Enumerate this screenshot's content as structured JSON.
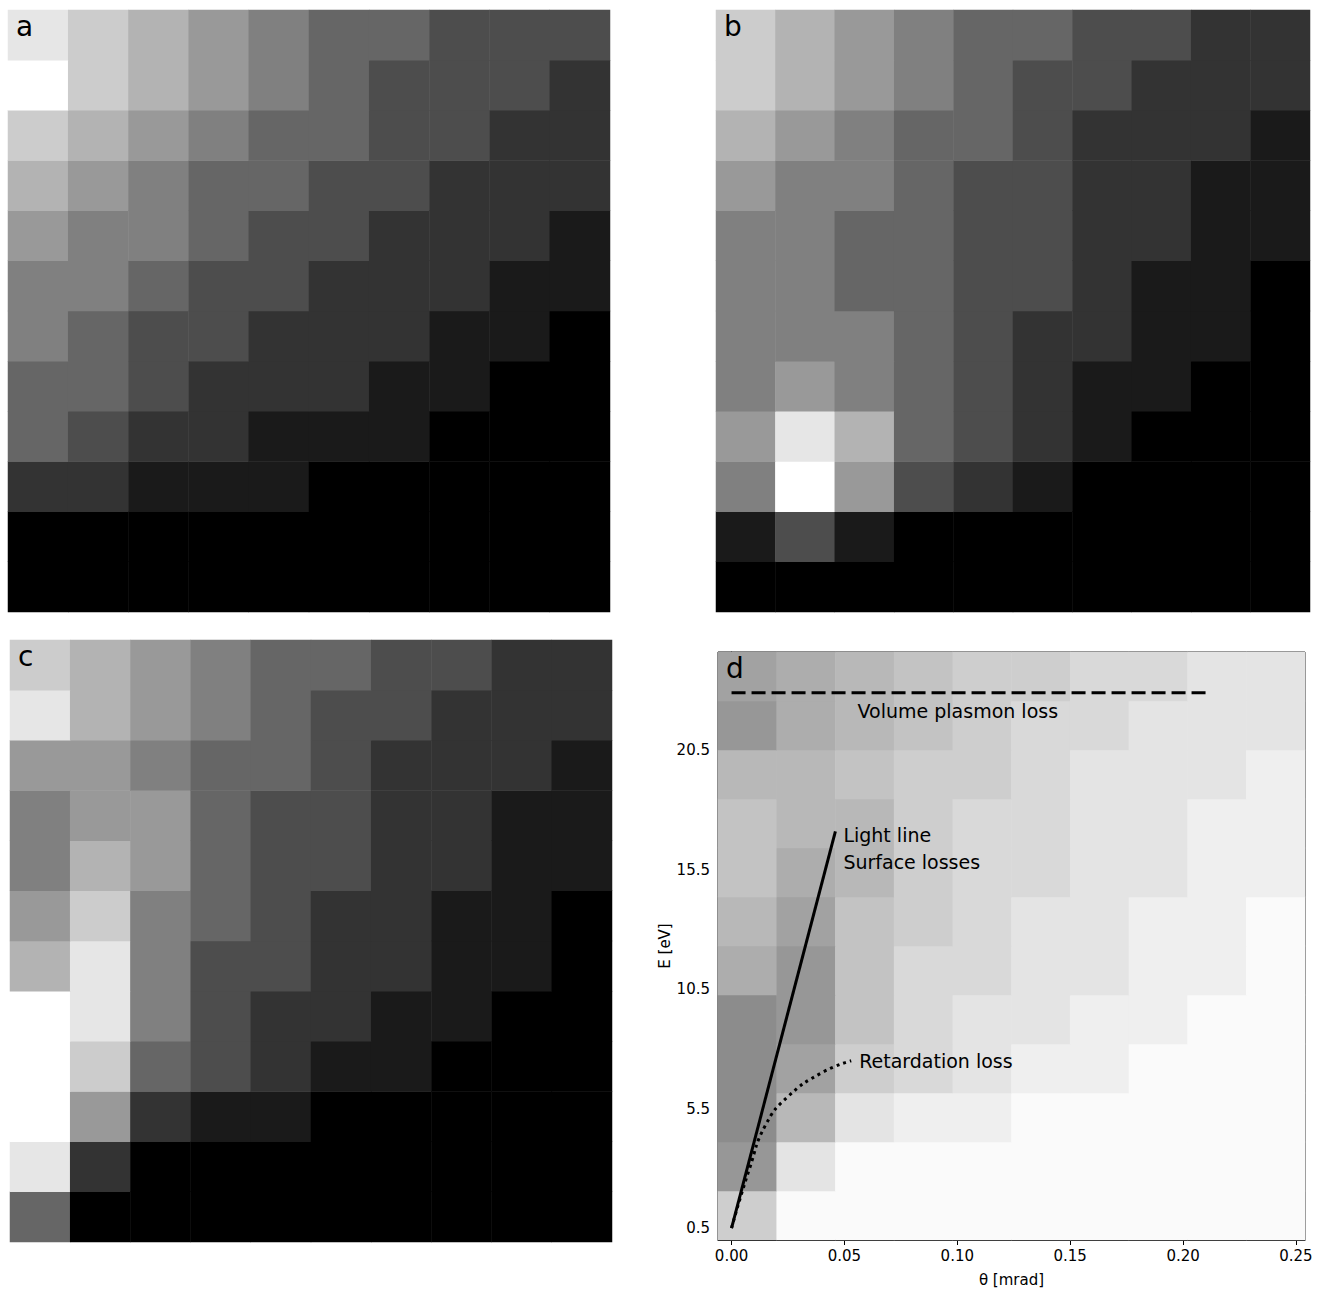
{
  "chart_data": [
    {
      "type": "heatmap",
      "title": "a",
      "tick_labels": false,
      "color": [
        "#000000",
        "#ffffff"
      ],
      "value_range": [
        0,
        10
      ],
      "theta": [
        0.007,
        0.033,
        0.059,
        0.085,
        0.111,
        0.137,
        0.163,
        0.189,
        0.215,
        0.241
      ],
      "energy": [
        1.025,
        3.075,
        5.125,
        7.175,
        9.225,
        11.275,
        13.325,
        15.375,
        17.425,
        19.475,
        21.525,
        23.575
      ],
      "cells": [
        [
          0,
          0,
          0,
          0,
          0,
          0,
          0,
          0,
          0,
          0
        ],
        [
          0,
          0,
          0,
          0,
          0,
          0,
          0,
          0,
          0,
          0
        ],
        [
          2,
          2,
          1,
          1,
          1,
          0,
          0,
          0,
          0,
          0
        ],
        [
          4,
          3,
          2,
          2,
          1,
          1,
          1,
          0,
          0,
          0
        ],
        [
          4,
          4,
          3,
          2,
          2,
          2,
          1,
          1,
          0,
          0
        ],
        [
          5,
          4,
          3,
          3,
          2,
          2,
          2,
          1,
          1,
          0
        ],
        [
          5,
          5,
          4,
          3,
          3,
          2,
          2,
          2,
          1,
          1
        ],
        [
          6,
          5,
          5,
          4,
          3,
          3,
          2,
          2,
          2,
          1
        ],
        [
          7,
          6,
          5,
          4,
          4,
          3,
          3,
          2,
          2,
          2
        ],
        [
          8,
          7,
          6,
          5,
          4,
          4,
          3,
          3,
          2,
          2
        ],
        [
          10,
          8,
          7,
          6,
          5,
          4,
          3,
          3,
          3,
          2
        ],
        [
          9,
          8,
          7,
          6,
          5,
          4,
          4,
          3,
          3,
          3
        ]
      ]
    },
    {
      "type": "heatmap",
      "title": "b",
      "tick_labels": false,
      "color": [
        "#000000",
        "#ffffff"
      ],
      "value_range": [
        0,
        10
      ],
      "theta": [
        0.007,
        0.033,
        0.059,
        0.085,
        0.111,
        0.137,
        0.163,
        0.189,
        0.215,
        0.241
      ],
      "energy": [
        1.025,
        3.075,
        5.125,
        7.175,
        9.225,
        11.275,
        13.325,
        15.375,
        17.425,
        19.475,
        21.525,
        23.575
      ],
      "cells": [
        [
          0,
          0,
          0,
          0,
          0,
          0,
          0,
          0,
          0,
          0
        ],
        [
          1,
          3,
          1,
          0,
          0,
          0,
          0,
          0,
          0,
          0
        ],
        [
          5,
          10,
          6,
          3,
          2,
          1,
          0,
          0,
          0,
          0
        ],
        [
          6,
          9,
          7,
          4,
          3,
          2,
          1,
          0,
          0,
          0
        ],
        [
          5,
          6,
          5,
          4,
          3,
          2,
          1,
          1,
          0,
          0
        ],
        [
          5,
          5,
          5,
          4,
          3,
          2,
          2,
          1,
          1,
          0
        ],
        [
          5,
          5,
          4,
          4,
          3,
          3,
          2,
          1,
          1,
          0
        ],
        [
          5,
          5,
          4,
          4,
          3,
          3,
          2,
          2,
          1,
          1
        ],
        [
          6,
          5,
          5,
          4,
          3,
          3,
          2,
          2,
          1,
          1
        ],
        [
          7,
          6,
          5,
          4,
          4,
          3,
          2,
          2,
          2,
          1
        ],
        [
          8,
          7,
          6,
          5,
          4,
          3,
          3,
          2,
          2,
          2
        ],
        [
          8,
          7,
          6,
          5,
          4,
          4,
          3,
          3,
          2,
          2
        ]
      ]
    },
    {
      "type": "heatmap",
      "title": "c",
      "tick_labels": false,
      "color": [
        "#000000",
        "#ffffff"
      ],
      "value_range": [
        0,
        10
      ],
      "theta": [
        0.007,
        0.033,
        0.059,
        0.085,
        0.111,
        0.137,
        0.163,
        0.189,
        0.215,
        0.241
      ],
      "energy": [
        1.025,
        3.075,
        5.125,
        7.175,
        9.225,
        11.275,
        13.325,
        15.375,
        17.425,
        19.475,
        21.525,
        23.575
      ],
      "cells": [
        [
          4,
          0,
          0,
          0,
          0,
          0,
          0,
          0,
          0,
          0
        ],
        [
          9,
          2,
          0,
          0,
          0,
          0,
          0,
          0,
          0,
          0
        ],
        [
          10,
          6,
          2,
          1,
          1,
          0,
          0,
          0,
          0,
          0
        ],
        [
          10,
          8,
          4,
          3,
          2,
          1,
          1,
          0,
          0,
          0
        ],
        [
          10,
          9,
          5,
          3,
          2,
          2,
          1,
          1,
          0,
          0
        ],
        [
          7,
          9,
          5,
          3,
          3,
          2,
          2,
          1,
          1,
          0
        ],
        [
          6,
          8,
          5,
          4,
          3,
          2,
          2,
          1,
          1,
          0
        ],
        [
          5,
          7,
          6,
          4,
          3,
          3,
          2,
          2,
          1,
          1
        ],
        [
          5,
          6,
          6,
          4,
          3,
          3,
          2,
          2,
          1,
          1
        ],
        [
          6,
          6,
          5,
          4,
          4,
          3,
          2,
          2,
          2,
          1
        ],
        [
          9,
          7,
          6,
          5,
          4,
          3,
          3,
          2,
          2,
          2
        ],
        [
          8,
          7,
          6,
          5,
          4,
          4,
          3,
          3,
          2,
          2
        ]
      ]
    },
    {
      "type": "heatmap",
      "title": "d",
      "tick_labels": true,
      "color": [
        "#fafafa",
        "#8c8c8c"
      ],
      "value_range": [
        0,
        10
      ],
      "x_label": "θ [mrad]",
      "y_label": "E [eV]",
      "xlim": [
        -0.006,
        0.254
      ],
      "xticks": [
        {
          "value": 0,
          "label": "0.00"
        },
        {
          "value": 0.05,
          "label": "0.05"
        },
        {
          "value": 0.1,
          "label": "0.10"
        },
        {
          "value": 0.15,
          "label": "0.15"
        },
        {
          "value": 0.2,
          "label": "0.20"
        },
        {
          "value": 0.25,
          "label": "0.25"
        }
      ],
      "ylim": [
        0,
        24.6
      ],
      "yticks": [
        0.5,
        5.5,
        10.5,
        15.5,
        20.5
      ],
      "theta": [
        0.007,
        0.033,
        0.059,
        0.085,
        0.111,
        0.137,
        0.163,
        0.189,
        0.215,
        0.241
      ],
      "energy": [
        1.025,
        3.075,
        5.125,
        7.175,
        9.225,
        11.275,
        13.325,
        15.375,
        17.425,
        19.475,
        21.525,
        23.575
      ],
      "cells": [
        [
          4,
          0,
          0,
          0,
          0,
          0,
          0,
          0,
          0,
          0
        ],
        [
          9,
          2,
          0,
          0,
          0,
          0,
          0,
          0,
          0,
          0
        ],
        [
          10,
          6,
          2,
          1,
          1,
          0,
          0,
          0,
          0,
          0
        ],
        [
          10,
          8,
          4,
          3,
          2,
          1,
          1,
          0,
          0,
          0
        ],
        [
          10,
          9,
          5,
          3,
          2,
          2,
          1,
          1,
          0,
          0
        ],
        [
          7,
          9,
          5,
          3,
          3,
          2,
          2,
          1,
          1,
          0
        ],
        [
          6,
          8,
          5,
          4,
          3,
          2,
          2,
          1,
          1,
          0
        ],
        [
          5,
          7,
          6,
          4,
          3,
          3,
          2,
          2,
          1,
          1
        ],
        [
          5,
          6,
          6,
          4,
          3,
          3,
          2,
          2,
          1,
          1
        ],
        [
          6,
          6,
          5,
          4,
          4,
          3,
          2,
          2,
          2,
          1
        ],
        [
          9,
          7,
          6,
          5,
          4,
          3,
          3,
          2,
          2,
          2
        ],
        [
          8,
          7,
          6,
          5,
          4,
          4,
          3,
          3,
          2,
          2
        ]
      ],
      "lines": [
        {
          "labels": [
            "Volume plasmon loss"
          ],
          "line_style": "dashed",
          "color": "#000000",
          "x": [
            0,
            0.21
          ],
          "y": [
            22.9,
            22.9
          ]
        },
        {
          "labels": [
            "Light line",
            "Surface losses"
          ],
          "line_style": "solid",
          "color": "#000000",
          "x": [
            0,
            0.046
          ],
          "y": [
            0.5,
            17.1
          ]
        },
        {
          "labels": [
            "Retardation loss"
          ],
          "line_style": "dotted",
          "color": "#000000",
          "x": [
            0,
            0.008,
            0.015,
            0.025,
            0.04,
            0.053
          ],
          "y": [
            0.5,
            3.0,
            4.8,
            6.0,
            7.0,
            7.5
          ]
        }
      ]
    }
  ]
}
